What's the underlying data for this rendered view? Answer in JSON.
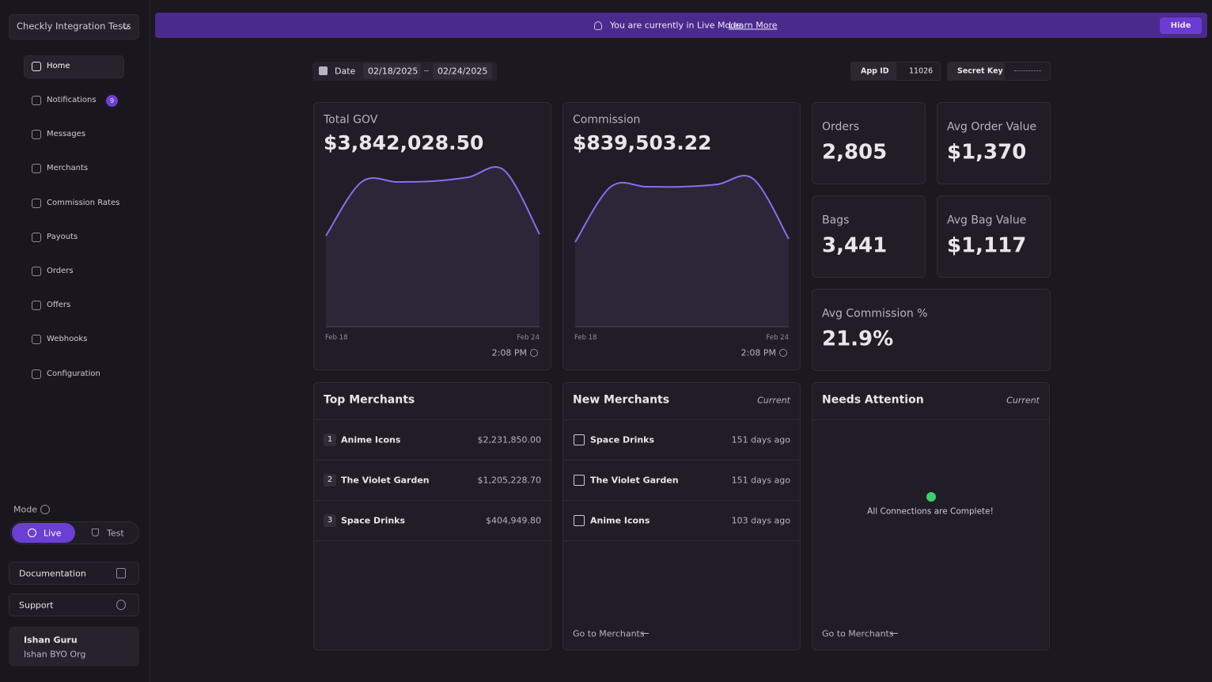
{
  "sidebar": {
    "org": "Checkly Integration Tests",
    "nav": [
      {
        "label": "Home"
      },
      {
        "label": "Notifications",
        "badge": "9"
      },
      {
        "label": "Messages"
      },
      {
        "label": "Merchants"
      },
      {
        "label": "Commission Rates"
      },
      {
        "label": "Payouts"
      },
      {
        "label": "Orders"
      },
      {
        "label": "Offers"
      },
      {
        "label": "Webhooks"
      },
      {
        "label": "Configuration"
      }
    ],
    "mode_label": "Mode",
    "modes": [
      "Live",
      "Test"
    ],
    "links": [
      "Documentation",
      "Support"
    ],
    "user": {
      "name": "Ishan Guru",
      "org": "Ishan BYO Org"
    }
  },
  "banner": {
    "message": "You are currently in Live Mode.",
    "link": "Learn More",
    "button": "Hide"
  },
  "filters": {
    "date_label": "Date",
    "start": "02/18/2025",
    "end": "02/24/2025",
    "app_id_label": "App ID",
    "app_id": "11026",
    "secret_key_label": "Secret Key"
  },
  "charts": [
    {
      "title": "Total GOV",
      "value": "$3,842,028.50",
      "x_start": "Feb 18",
      "x_end": "Feb 24",
      "time": "2:08 PM",
      "ylim": [
        0,
        200
      ],
      "sparkline": [
        115,
        183,
        183,
        184,
        189,
        198,
        117
      ]
    },
    {
      "title": "Commission",
      "value": "$839,503.22",
      "x_start": "Feb 18",
      "x_end": "Feb 24",
      "time": "2:08 PM",
      "ylim": [
        0,
        200
      ],
      "sparkline": [
        107,
        177,
        177,
        177,
        180,
        187,
        111
      ]
    }
  ],
  "stats": [
    {
      "title": "Orders",
      "value": "2,805"
    },
    {
      "title": "Avg Order Value",
      "value": "$1,370"
    },
    {
      "title": "Bags",
      "value": "3,441"
    },
    {
      "title": "Avg Bag Value",
      "value": "$1,117"
    },
    {
      "title": "Avg Commission %",
      "value": "21.9%"
    }
  ],
  "top_merchants": {
    "title": "Top Merchants",
    "rows": [
      {
        "rank": "1",
        "name": "Anime Icons",
        "amount": "$2,231,850.00"
      },
      {
        "rank": "2",
        "name": "The Violet Garden",
        "amount": "$1,205,228.70"
      },
      {
        "rank": "3",
        "name": "Space Drinks",
        "amount": "$404,949.80"
      }
    ]
  },
  "new_merchants": {
    "title": "New Merchants",
    "tag": "Current",
    "rows": [
      {
        "name": "Space Drinks",
        "age": "151 days ago"
      },
      {
        "name": "The Violet Garden",
        "age": "151 days ago"
      },
      {
        "name": "Anime Icons",
        "age": "103 days ago"
      }
    ],
    "link": "Go to Merchants"
  },
  "needs_attention": {
    "title": "Needs Attention",
    "tag": "Current",
    "message": "All Connections are Complete!",
    "link": "Go to Merchants"
  }
}
